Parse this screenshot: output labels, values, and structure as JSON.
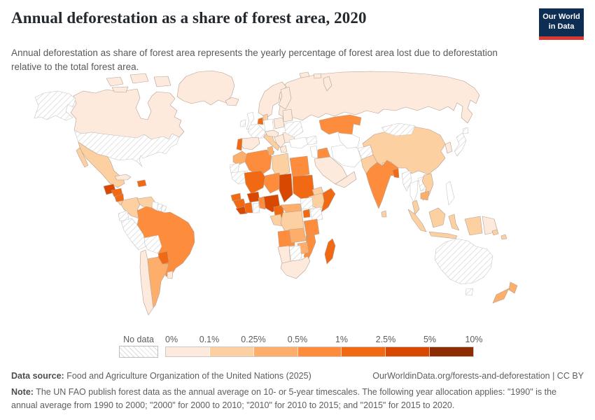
{
  "header": {
    "title": "Annual deforestation as a share of forest area, 2020",
    "subtitle": "Annual deforestation as share of forest area represents the yearly percentage of forest area lost due to deforestation relative to the total forest area.",
    "logo": {
      "line1": "Our World",
      "line2": "in Data",
      "bg_color": "#0d2d52",
      "accent_color": "#d93a33"
    }
  },
  "chart_data": {
    "type": "choropleth_map",
    "title": "Annual deforestation as a share of forest area, 2020",
    "unit": "% of forest area lost per year",
    "legend": {
      "no_data_label": "No data",
      "tick_labels": [
        "0%",
        "0.1%",
        "0.25%",
        "0.5%",
        "1%",
        "2.5%",
        "5%",
        "10%"
      ],
      "bin_colors": [
        "#fdeadc",
        "#fdd0a2",
        "#fdae6b",
        "#fd8d3c",
        "#f16913",
        "#d94801",
        "#8c2d04"
      ],
      "zero_bin_color": "#ffffff",
      "no_data_fill": "hatched"
    },
    "regions": [
      {
        "name": "russia",
        "bin": 1
      },
      {
        "name": "novaya-zemlya",
        "bin": 1
      },
      {
        "name": "svalbard-1",
        "bin": 1
      },
      {
        "name": "svalbard-2",
        "bin": 1
      },
      {
        "name": "canada",
        "bin": 1
      },
      {
        "name": "arctic-island-1",
        "bin": 1
      },
      {
        "name": "arctic-island-2",
        "bin": 1
      },
      {
        "name": "arctic-island-3",
        "bin": 1
      },
      {
        "name": "arctic-island-4",
        "bin": 1
      },
      {
        "name": "greenland",
        "bin": 1
      },
      {
        "name": "alaska",
        "bin": null
      },
      {
        "name": "usa",
        "bin": null
      },
      {
        "name": "mexico",
        "bin": 2
      },
      {
        "name": "baja-california",
        "bin": 2
      },
      {
        "name": "guatemala",
        "bin": 6
      },
      {
        "name": "honduras",
        "bin": 5
      },
      {
        "name": "nicaragua",
        "bin": 5
      },
      {
        "name": "costa-rica-panama",
        "bin": 2
      },
      {
        "name": "cuba",
        "bin": 1
      },
      {
        "name": "dominican-republic",
        "bin": 5
      },
      {
        "name": "colombia",
        "bin": 2
      },
      {
        "name": "venezuela",
        "bin": 2
      },
      {
        "name": "guyana",
        "bin": 0
      },
      {
        "name": "suriname",
        "bin": null
      },
      {
        "name": "french-guiana",
        "bin": null
      },
      {
        "name": "ecuador",
        "bin": null
      },
      {
        "name": "peru",
        "bin": null
      },
      {
        "name": "brazil",
        "bin": 4
      },
      {
        "name": "bolivia",
        "bin": null
      },
      {
        "name": "paraguay",
        "bin": 5
      },
      {
        "name": "argentina",
        "bin": 3
      },
      {
        "name": "chile",
        "bin": 1
      },
      {
        "name": "uruguay",
        "bin": 1
      },
      {
        "name": "iceland",
        "bin": 1
      },
      {
        "name": "uk",
        "bin": 0
      },
      {
        "name": "ireland",
        "bin": null
      },
      {
        "name": "norway-sweden",
        "bin": 1
      },
      {
        "name": "finland",
        "bin": 1
      },
      {
        "name": "baltics-belarus",
        "bin": 1
      },
      {
        "name": "denmark",
        "bin": 2
      },
      {
        "name": "netherlands-belgium",
        "bin": 5
      },
      {
        "name": "germany",
        "bin": 0
      },
      {
        "name": "france",
        "bin": null
      },
      {
        "name": "spain",
        "bin": 1
      },
      {
        "name": "portugal",
        "bin": 5
      },
      {
        "name": "italy",
        "bin": 2
      },
      {
        "name": "sicily",
        "bin": 2
      },
      {
        "name": "central-europe",
        "bin": 1
      },
      {
        "name": "poland",
        "bin": 1
      },
      {
        "name": "balkans",
        "bin": 1
      },
      {
        "name": "greece",
        "bin": 1
      },
      {
        "name": "romania-bulgaria",
        "bin": 1
      },
      {
        "name": "ukraine",
        "bin": null
      },
      {
        "name": "turkey",
        "bin": 0
      },
      {
        "name": "caucasus",
        "bin": null
      },
      {
        "name": "levant",
        "bin": 0
      },
      {
        "name": "iraq",
        "bin": 4
      },
      {
        "name": "iran",
        "bin": 0
      },
      {
        "name": "saudi-arabia",
        "bin": 1
      },
      {
        "name": "yemen-oman",
        "bin": 1
      },
      {
        "name": "kazakhstan",
        "bin": 4
      },
      {
        "name": "central-asia",
        "bin": 0
      },
      {
        "name": "afghanistan",
        "bin": null
      },
      {
        "name": "pakistan",
        "bin": 2
      },
      {
        "name": "china",
        "bin": 2
      },
      {
        "name": "mongolia",
        "bin": null
      },
      {
        "name": "south-korea",
        "bin": 1
      },
      {
        "name": "japan",
        "bin": null
      },
      {
        "name": "hokkaido",
        "bin": null
      },
      {
        "name": "nepal",
        "bin": 1
      },
      {
        "name": "india",
        "bin": 4
      },
      {
        "name": "bangladesh",
        "bin": 5
      },
      {
        "name": "sri-lanka",
        "bin": 2
      },
      {
        "name": "myanmar",
        "bin": null
      },
      {
        "name": "thailand",
        "bin": 0
      },
      {
        "name": "laos",
        "bin": null
      },
      {
        "name": "vietnam",
        "bin": 2
      },
      {
        "name": "cambodia",
        "bin": 3
      },
      {
        "name": "malay-peninsula",
        "bin": 2
      },
      {
        "name": "sumatra",
        "bin": 2
      },
      {
        "name": "java",
        "bin": 2
      },
      {
        "name": "borneo",
        "bin": 2
      },
      {
        "name": "sulawesi",
        "bin": 2
      },
      {
        "name": "west-papua",
        "bin": 2
      },
      {
        "name": "papua-new-guinea",
        "bin": 1
      },
      {
        "name": "philippines",
        "bin": 0
      },
      {
        "name": "solomon-islands",
        "bin": 2
      },
      {
        "name": "australia",
        "bin": null
      },
      {
        "name": "tasmania",
        "bin": null
      },
      {
        "name": "new-zealand-north",
        "bin": 3
      },
      {
        "name": "new-zealand-south",
        "bin": 3
      },
      {
        "name": "morocco",
        "bin": 3
      },
      {
        "name": "western-sahara",
        "bin": null
      },
      {
        "name": "mauritania",
        "bin": null
      },
      {
        "name": "algeria",
        "bin": 4
      },
      {
        "name": "tunisia",
        "bin": 3
      },
      {
        "name": "libya",
        "bin": 2
      },
      {
        "name": "egypt",
        "bin": 4
      },
      {
        "name": "mali",
        "bin": 5
      },
      {
        "name": "niger",
        "bin": 4
      },
      {
        "name": "chad",
        "bin": 6
      },
      {
        "name": "sudan",
        "bin": 5
      },
      {
        "name": "eritrea",
        "bin": 2
      },
      {
        "name": "ethiopia",
        "bin": 2
      },
      {
        "name": "somalia",
        "bin": 5
      },
      {
        "name": "senegal",
        "bin": 5
      },
      {
        "name": "guinea",
        "bin": 5
      },
      {
        "name": "sierra-leone-liberia",
        "bin": 6
      },
      {
        "name": "ivory-coast",
        "bin": 5
      },
      {
        "name": "ghana",
        "bin": null
      },
      {
        "name": "burkina-faso",
        "bin": 6
      },
      {
        "name": "togo-benin",
        "bin": 4
      },
      {
        "name": "nigeria",
        "bin": 6
      },
      {
        "name": "cameroon",
        "bin": 5
      },
      {
        "name": "central-african-republic",
        "bin": 3
      },
      {
        "name": "south-sudan",
        "bin": null
      },
      {
        "name": "uganda",
        "bin": 5
      },
      {
        "name": "kenya",
        "bin": null
      },
      {
        "name": "gabon-congo",
        "bin": 2
      },
      {
        "name": "drc",
        "bin": 2
      },
      {
        "name": "tanzania",
        "bin": 4
      },
      {
        "name": "angola",
        "bin": 4
      },
      {
        "name": "zambia",
        "bin": 3
      },
      {
        "name": "malawi",
        "bin": 4
      },
      {
        "name": "mozambique",
        "bin": 4
      },
      {
        "name": "zimbabwe",
        "bin": 3
      },
      {
        "name": "botswana",
        "bin": null
      },
      {
        "name": "namibia",
        "bin": 1
      },
      {
        "name": "south-africa",
        "bin": 1
      },
      {
        "name": "madagascar",
        "bin": 5
      }
    ],
    "border_color": "#b5a094",
    "no_data_border_color": "#c6c6c6"
  },
  "footer": {
    "source_label": "Data source:",
    "source_text": "Food and Agriculture Organization of the United Nations (2025)",
    "link_text": "OurWorldinData.org/forests-and-deforestation | CC BY",
    "note_label": "Note:",
    "note_text": "The UN FAO publish forest data as the annual average on 10- or 5-year timescales. The following year allocation applies: \"1990\" is the annual average from 1990 to 2000; \"2000\" for 2000 to 2010; \"2010\" for 2010 to 2015; and \"2015\" for 2015 to 2020."
  }
}
